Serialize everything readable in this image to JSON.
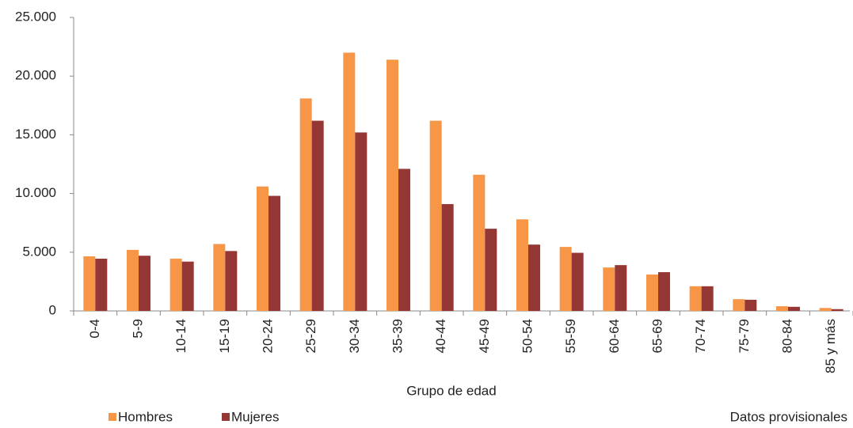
{
  "chart_data": {
    "type": "bar",
    "x_label": "Grupo de edad",
    "note": "Datos provisionales",
    "categories": [
      "0-4",
      "5-9",
      "10-14",
      "15-19",
      "20-24",
      "25-29",
      "30-34",
      "35-39",
      "40-44",
      "45-49",
      "50-54",
      "55-59",
      "60-64",
      "65-69",
      "70-74",
      "75-79",
      "80-84",
      "85 y más"
    ],
    "series": [
      {
        "name": "Hombres",
        "color": "#f79646",
        "values": [
          4650,
          5200,
          4450,
          5700,
          10600,
          18100,
          22000,
          21400,
          16200,
          11600,
          7800,
          5450,
          3700,
          3100,
          2100,
          1000,
          400,
          250
        ]
      },
      {
        "name": "Mujeres",
        "color": "#953735",
        "values": [
          4450,
          4700,
          4200,
          5100,
          9800,
          16200,
          15200,
          12100,
          9100,
          7000,
          5650,
          4950,
          3900,
          3300,
          2100,
          950,
          350,
          150
        ]
      }
    ],
    "ylim": [
      0,
      25000
    ],
    "yticks": [
      0,
      {
        "value": 5000,
        "label": "5.000"
      },
      {
        "value": 10000,
        "label": "10.000"
      },
      {
        "value": 15000,
        "label": "15.000"
      },
      {
        "value": 20000,
        "label": "20.000"
      },
      {
        "value": 25000,
        "label": "25.000"
      }
    ],
    "grid": false,
    "legend": "bottom-left"
  }
}
